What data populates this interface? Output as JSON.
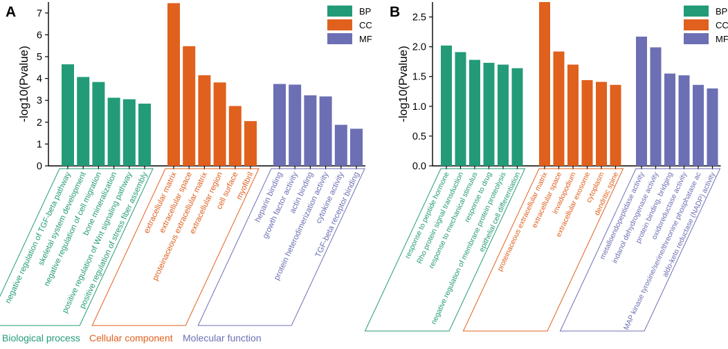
{
  "colors": {
    "BP": "#239b78",
    "CC": "#e0601d",
    "MF": "#6c6fb3",
    "axis": "#000000"
  },
  "chart_data": [
    {
      "type": "bar",
      "panel_label": "A",
      "ylabel": "-log10(Pvalue)",
      "ylim": [
        0,
        7.5
      ],
      "yticks": [
        0,
        1,
        2,
        3,
        4,
        5,
        6,
        7
      ],
      "legend": [
        "BP",
        "CC",
        "MF"
      ],
      "legend_position": "top-right",
      "group_captions": [
        "Biological process",
        "Cellular component",
        "Molecular function"
      ],
      "groups": [
        {
          "key": "BP",
          "categories": [
            "negative regulation of TGF-beta pathway",
            "skeletal system development",
            "negative regulation of cell migration",
            "bone mineralization",
            "positive regulation of Wnt signaling pathway",
            "positive regulation of stress fiber assembly"
          ],
          "values": [
            4.65,
            4.07,
            3.84,
            3.12,
            3.05,
            2.85
          ]
        },
        {
          "key": "CC",
          "categories": [
            "extracellular matrix",
            "extracellular space",
            "proteinaceous extracellular matrix",
            "extracellular region",
            "cell surface",
            "myofibril"
          ],
          "values": [
            7.45,
            5.48,
            4.15,
            3.82,
            2.74,
            2.05
          ]
        },
        {
          "key": "MF",
          "categories": [
            "heparin binding",
            "growth factor activity",
            "actin binding",
            "protein heterodimerization activity",
            "cytokine activity",
            "TGF-beta receptor binding"
          ],
          "values": [
            3.75,
            3.72,
            3.23,
            3.18,
            1.88,
            1.7
          ]
        }
      ]
    },
    {
      "type": "bar",
      "panel_label": "B",
      "ylabel": "-log10(Pvalue)",
      "ylim": [
        0,
        2.75
      ],
      "yticks": [
        0.0,
        0.5,
        1.0,
        1.5,
        2.0,
        2.5
      ],
      "yticklabels": [
        "0.0",
        "0.5",
        "1.0",
        "1.5",
        "2.0",
        "2.5"
      ],
      "legend": [
        "BP",
        "CC",
        "MF"
      ],
      "legend_position": "top-right",
      "group_captions": [],
      "groups": [
        {
          "key": "BP",
          "categories": [
            "response to peptide hormone",
            "Rho protein signal transduction",
            "response to mechanical stimulus",
            "response to drug",
            "negative regulation of membrane protein proteolysis",
            "epithelial cell differentiation"
          ],
          "values": [
            2.02,
            1.91,
            1.78,
            1.73,
            1.7,
            1.64
          ]
        },
        {
          "key": "CC",
          "categories": [
            "proteinaceous extracellular matrix",
            "extracellular space",
            "invadopodium",
            "extracellular exosome",
            "cytoplasm",
            "dendritic spine"
          ],
          "values": [
            2.75,
            1.92,
            1.7,
            1.44,
            1.41,
            1.36
          ]
        },
        {
          "key": "MF",
          "categories": [
            "metalloendopeptidase activity",
            "indanol dehydrogenase activity",
            "protein binding, bridging",
            "oxidoreductase activity",
            "MAP kinase tyrosine/serine/threonine phosphatase ac",
            "aldo-keto reductase (NADP) activity"
          ],
          "values": [
            2.17,
            1.99,
            1.55,
            1.52,
            1.36,
            1.3
          ]
        }
      ]
    }
  ]
}
